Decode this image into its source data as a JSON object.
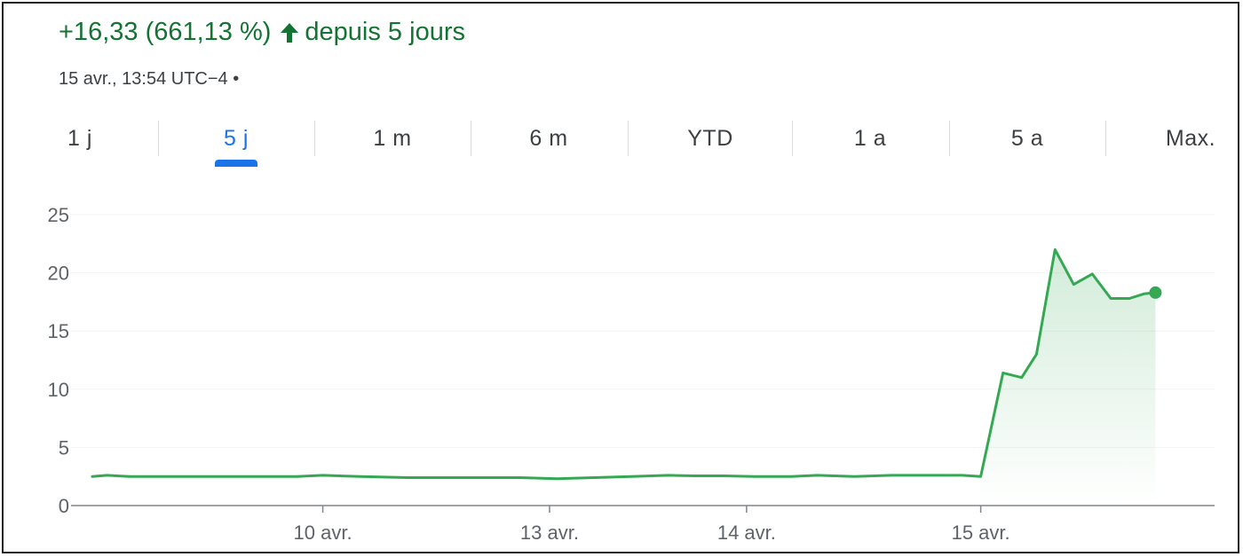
{
  "header": {
    "change": "+16,33 (661,13 %)",
    "period": "depuis 5 jours",
    "arrow_icon": "arrow-up-icon",
    "timestamp": "15 avr., 13:54 UTC−4 •"
  },
  "tabs": [
    {
      "label": "1 j",
      "active": false
    },
    {
      "label": "5 j",
      "active": true
    },
    {
      "label": "1 m",
      "active": false
    },
    {
      "label": "6 m",
      "active": false
    },
    {
      "label": "YTD",
      "active": false
    },
    {
      "label": "1 a",
      "active": false
    },
    {
      "label": "5 a",
      "active": false
    },
    {
      "label": "Max.",
      "active": false
    }
  ],
  "colors": {
    "positive": "#137333",
    "line": "#34a853",
    "accent": "#1a73e8",
    "grid": "#f1f3f4",
    "axis": "#5f6368"
  },
  "chart_data": {
    "type": "area",
    "ylim": [
      0,
      25
    ],
    "yticks": [
      "0",
      "5",
      "10",
      "15",
      "20",
      "25"
    ],
    "xticks": [
      {
        "label": "10 avr.",
        "x": 6.2
      },
      {
        "label": "13 avr.",
        "x": 12.3
      },
      {
        "label": "14 avr.",
        "x": 17.6
      },
      {
        "label": "15 avr.",
        "x": 23.9
      }
    ],
    "xlim": [
      0,
      30
    ],
    "grid": true,
    "series": [
      {
        "x": [
          0,
          0.4,
          1.0,
          1.7,
          2.5,
          3.5,
          4.5,
          5.5,
          6.2,
          7.2,
          8.5,
          10,
          11.5,
          12.5,
          13.5,
          14.5,
          15.5,
          16.2,
          17,
          17.8,
          18.8,
          19.5,
          20.5,
          21.5,
          22.5,
          23.4,
          23.9,
          24.5,
          25.0,
          25.4,
          25.9,
          26.4,
          26.9,
          27.4,
          27.9,
          28.3,
          28.6
        ],
        "values": [
          2.5,
          2.6,
          2.5,
          2.5,
          2.5,
          2.5,
          2.5,
          2.5,
          2.6,
          2.5,
          2.4,
          2.4,
          2.4,
          2.3,
          2.4,
          2.5,
          2.6,
          2.55,
          2.55,
          2.5,
          2.5,
          2.6,
          2.5,
          2.6,
          2.6,
          2.6,
          2.5,
          11.4,
          11.0,
          13.0,
          22.0,
          19.0,
          19.9,
          17.8,
          17.8,
          18.2,
          18.3
        ]
      }
    ]
  }
}
